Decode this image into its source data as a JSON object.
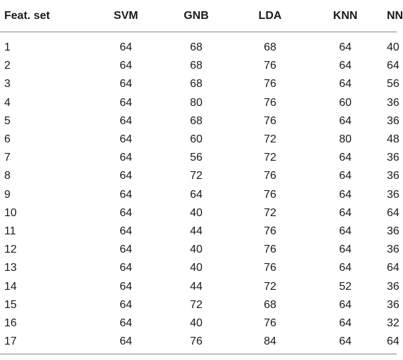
{
  "table": {
    "headers": [
      "Feat. set",
      "SVM",
      "GNB",
      "LDA",
      "KNN",
      "NN"
    ],
    "rows": [
      [
        "1",
        "64",
        "68",
        "68",
        "64",
        "40"
      ],
      [
        "2",
        "64",
        "68",
        "76",
        "64",
        "64"
      ],
      [
        "3",
        "64",
        "68",
        "76",
        "64",
        "56"
      ],
      [
        "4",
        "64",
        "80",
        "76",
        "60",
        "36"
      ],
      [
        "5",
        "64",
        "68",
        "76",
        "64",
        "36"
      ],
      [
        "6",
        "64",
        "60",
        "72",
        "80",
        "48"
      ],
      [
        "7",
        "64",
        "56",
        "72",
        "64",
        "36"
      ],
      [
        "8",
        "64",
        "72",
        "76",
        "64",
        "36"
      ],
      [
        "9",
        "64",
        "64",
        "76",
        "64",
        "36"
      ],
      [
        "10",
        "64",
        "40",
        "72",
        "64",
        "64"
      ],
      [
        "11",
        "64",
        "44",
        "76",
        "64",
        "36"
      ],
      [
        "12",
        "64",
        "40",
        "76",
        "64",
        "36"
      ],
      [
        "13",
        "64",
        "40",
        "76",
        "64",
        "64"
      ],
      [
        "14",
        "64",
        "44",
        "72",
        "52",
        "36"
      ],
      [
        "15",
        "64",
        "72",
        "68",
        "64",
        "36"
      ],
      [
        "16",
        "64",
        "40",
        "76",
        "64",
        "32"
      ],
      [
        "17",
        "64",
        "76",
        "84",
        "64",
        "64"
      ]
    ]
  }
}
